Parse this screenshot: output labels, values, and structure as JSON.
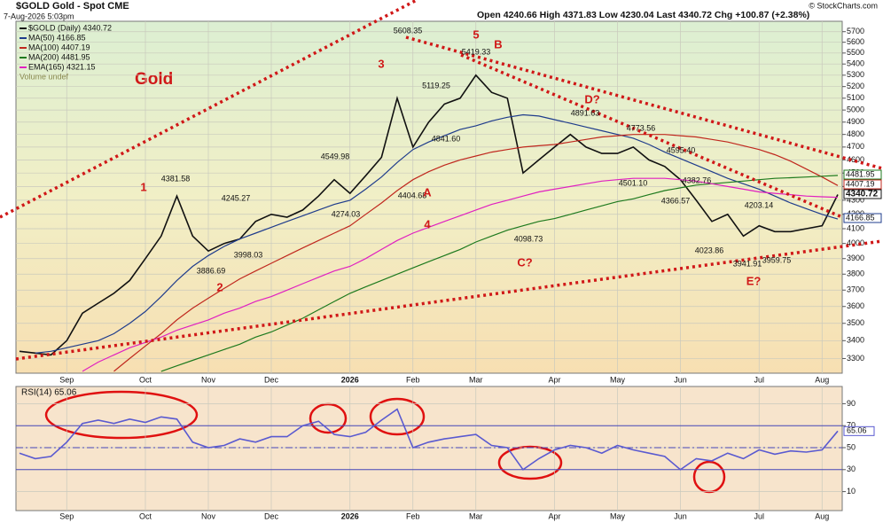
{
  "chart_data": [
    {
      "type": "line",
      "title": "Gold",
      "symbol_title": "$GOLD Gold - Spot CME",
      "date": "7-Aug-2026 5:03pm",
      "quote": "Open 4240.66 High 4371.83 Low 4230.04 Last 4340.72 Chg +100.87 (+2.38%)",
      "credit": "© StockCharts.com",
      "log_scale": true,
      "grid": true,
      "categories": [
        null,
        null,
        null,
        "Sep",
        null,
        null,
        null,
        null,
        "Oct",
        null,
        null,
        null,
        "Nov",
        null,
        null,
        null,
        "Dec",
        null,
        null,
        null,
        null,
        "2026",
        null,
        null,
        null,
        "Feb",
        null,
        null,
        null,
        "Mar",
        null,
        null,
        null,
        null,
        "Apr",
        null,
        null,
        null,
        "May",
        null,
        null,
        null,
        "Jun",
        null,
        null,
        null,
        null,
        "Jul",
        null,
        null,
        null,
        "Aug",
        null
      ],
      "ylim": [
        3220,
        5800
      ],
      "yticks": [
        3300,
        3400,
        3500,
        3600,
        3700,
        3800,
        3900,
        4000,
        4100,
        4200,
        4300,
        4400,
        4500,
        4600,
        4700,
        4800,
        4900,
        5000,
        5100,
        5200,
        5300,
        5400,
        5500,
        5600,
        5700
      ],
      "series": [
        {
          "name": "$GOLD (Daily) 4340.72",
          "color": "#111111",
          "values": [
            3340,
            3330,
            3320,
            3400,
            3560,
            3620,
            3680,
            3760,
            3900,
            4050,
            4330,
            4050,
            3950,
            4000,
            4030,
            4150,
            4200,
            4180,
            4230,
            4330,
            4450,
            4350,
            4480,
            4620,
            5100,
            4700,
            4900,
            5050,
            5100,
            5300,
            5150,
            5100,
            4500,
            4600,
            4700,
            4800,
            4700,
            4650,
            4650,
            4700,
            4600,
            4550,
            4450,
            4300,
            4150,
            4200,
            4050,
            4120,
            4080,
            4080,
            4100,
            4120,
            4340.72
          ]
        },
        {
          "name": "MA(50) 4166.85",
          "color": "#1f3c8c",
          "values": [
            null,
            3330,
            3340,
            3360,
            3380,
            3400,
            3440,
            3500,
            3570,
            3660,
            3760,
            3850,
            3920,
            3980,
            4030,
            4070,
            4110,
            4150,
            4190,
            4230,
            4270,
            4300,
            4380,
            4470,
            4580,
            4680,
            4740,
            4790,
            4840,
            4870,
            4910,
            4940,
            4960,
            4950,
            4920,
            4890,
            4860,
            4830,
            4800,
            4770,
            4720,
            4660,
            4610,
            4560,
            4510,
            4460,
            4420,
            4380,
            4330,
            4280,
            4240,
            4200,
            4166.85
          ]
        },
        {
          "name": "MA(100) 4407.19",
          "color": "#c0281e",
          "values": [
            null,
            null,
            null,
            null,
            null,
            null,
            3230,
            3300,
            3370,
            3440,
            3520,
            3590,
            3650,
            3710,
            3770,
            3820,
            3870,
            3920,
            3970,
            4020,
            4070,
            4120,
            4200,
            4280,
            4370,
            4450,
            4510,
            4560,
            4600,
            4630,
            4660,
            4680,
            4700,
            4710,
            4720,
            4740,
            4760,
            4780,
            4790,
            4800,
            4800,
            4800,
            4790,
            4780,
            4760,
            4740,
            4710,
            4680,
            4640,
            4590,
            4530,
            4470,
            4407.19
          ]
        },
        {
          "name": "MA(200) 4481.95",
          "color": "#1e7a1e",
          "values": [
            null,
            null,
            null,
            null,
            null,
            null,
            null,
            null,
            null,
            3230,
            3260,
            3290,
            3320,
            3350,
            3380,
            3420,
            3450,
            3490,
            3530,
            3580,
            3630,
            3680,
            3720,
            3760,
            3800,
            3840,
            3880,
            3920,
            3960,
            4010,
            4050,
            4090,
            4120,
            4150,
            4170,
            4200,
            4230,
            4260,
            4290,
            4310,
            4340,
            4370,
            4390,
            4410,
            4420,
            4430,
            4440,
            4450,
            4460,
            4465,
            4470,
            4476,
            4481.95
          ]
        },
        {
          "name": "EMA(165) 4321.15",
          "color": "#e020c0",
          "values": [
            null,
            null,
            null,
            null,
            3230,
            3280,
            3320,
            3360,
            3390,
            3420,
            3460,
            3490,
            3520,
            3560,
            3590,
            3630,
            3660,
            3700,
            3740,
            3780,
            3820,
            3850,
            3900,
            3960,
            4020,
            4070,
            4110,
            4150,
            4190,
            4230,
            4270,
            4300,
            4330,
            4360,
            4380,
            4400,
            4420,
            4440,
            4450,
            4460,
            4460,
            4460,
            4450,
            4440,
            4420,
            4400,
            4380,
            4360,
            4350,
            4340,
            4330,
            4325,
            4321.15
          ]
        }
      ],
      "legend_extra": "Volume undef",
      "price_labels": [
        "5608.35",
        "5419.33",
        "5119.25",
        "4841.60",
        "4891.63",
        "4773.56",
        "4595.40",
        "4549.98",
        "4381.58",
        "4245.27",
        "3886.69",
        "3998.03",
        "4274.03",
        "4404.68",
        "4501.10",
        "4382.76",
        "4366.57",
        "4203.14",
        "4098.73",
        "4023.86",
        "3941.91",
        "3959.75"
      ],
      "wave_labels": [
        "1",
        "2",
        "3",
        "4",
        "5",
        "A",
        "B",
        "C?",
        "D?",
        "E?"
      ]
    },
    {
      "type": "line",
      "title": "RSI(14) 65.06",
      "grid": true,
      "categories": [
        null,
        null,
        null,
        "Sep",
        null,
        null,
        null,
        null,
        "Oct",
        null,
        null,
        null,
        "Nov",
        null,
        null,
        null,
        "Dec",
        null,
        null,
        null,
        null,
        "2026",
        null,
        null,
        null,
        "Feb",
        null,
        null,
        null,
        "Mar",
        null,
        null,
        null,
        null,
        "Apr",
        null,
        null,
        null,
        "May",
        null,
        null,
        null,
        "Jun",
        null,
        null,
        null,
        null,
        "Jul",
        null,
        null,
        null,
        "Aug",
        null
      ],
      "ylim": [
        0,
        100
      ],
      "yticks": [
        10,
        30,
        50,
        70,
        90
      ],
      "reference_lines": [
        30,
        50,
        70
      ],
      "series": [
        {
          "name": "RSI(14)",
          "color": "#5a5ad0",
          "values": [
            45,
            40,
            42,
            55,
            72,
            75,
            72,
            76,
            73,
            78,
            76,
            55,
            50,
            52,
            58,
            55,
            60,
            60,
            70,
            74,
            62,
            60,
            64,
            75,
            85,
            50,
            55,
            58,
            60,
            62,
            52,
            50,
            30,
            40,
            48,
            52,
            50,
            45,
            52,
            48,
            45,
            42,
            30,
            40,
            38,
            45,
            40,
            48,
            44,
            47,
            46,
            48,
            65.06
          ]
        }
      ]
    }
  ]
}
